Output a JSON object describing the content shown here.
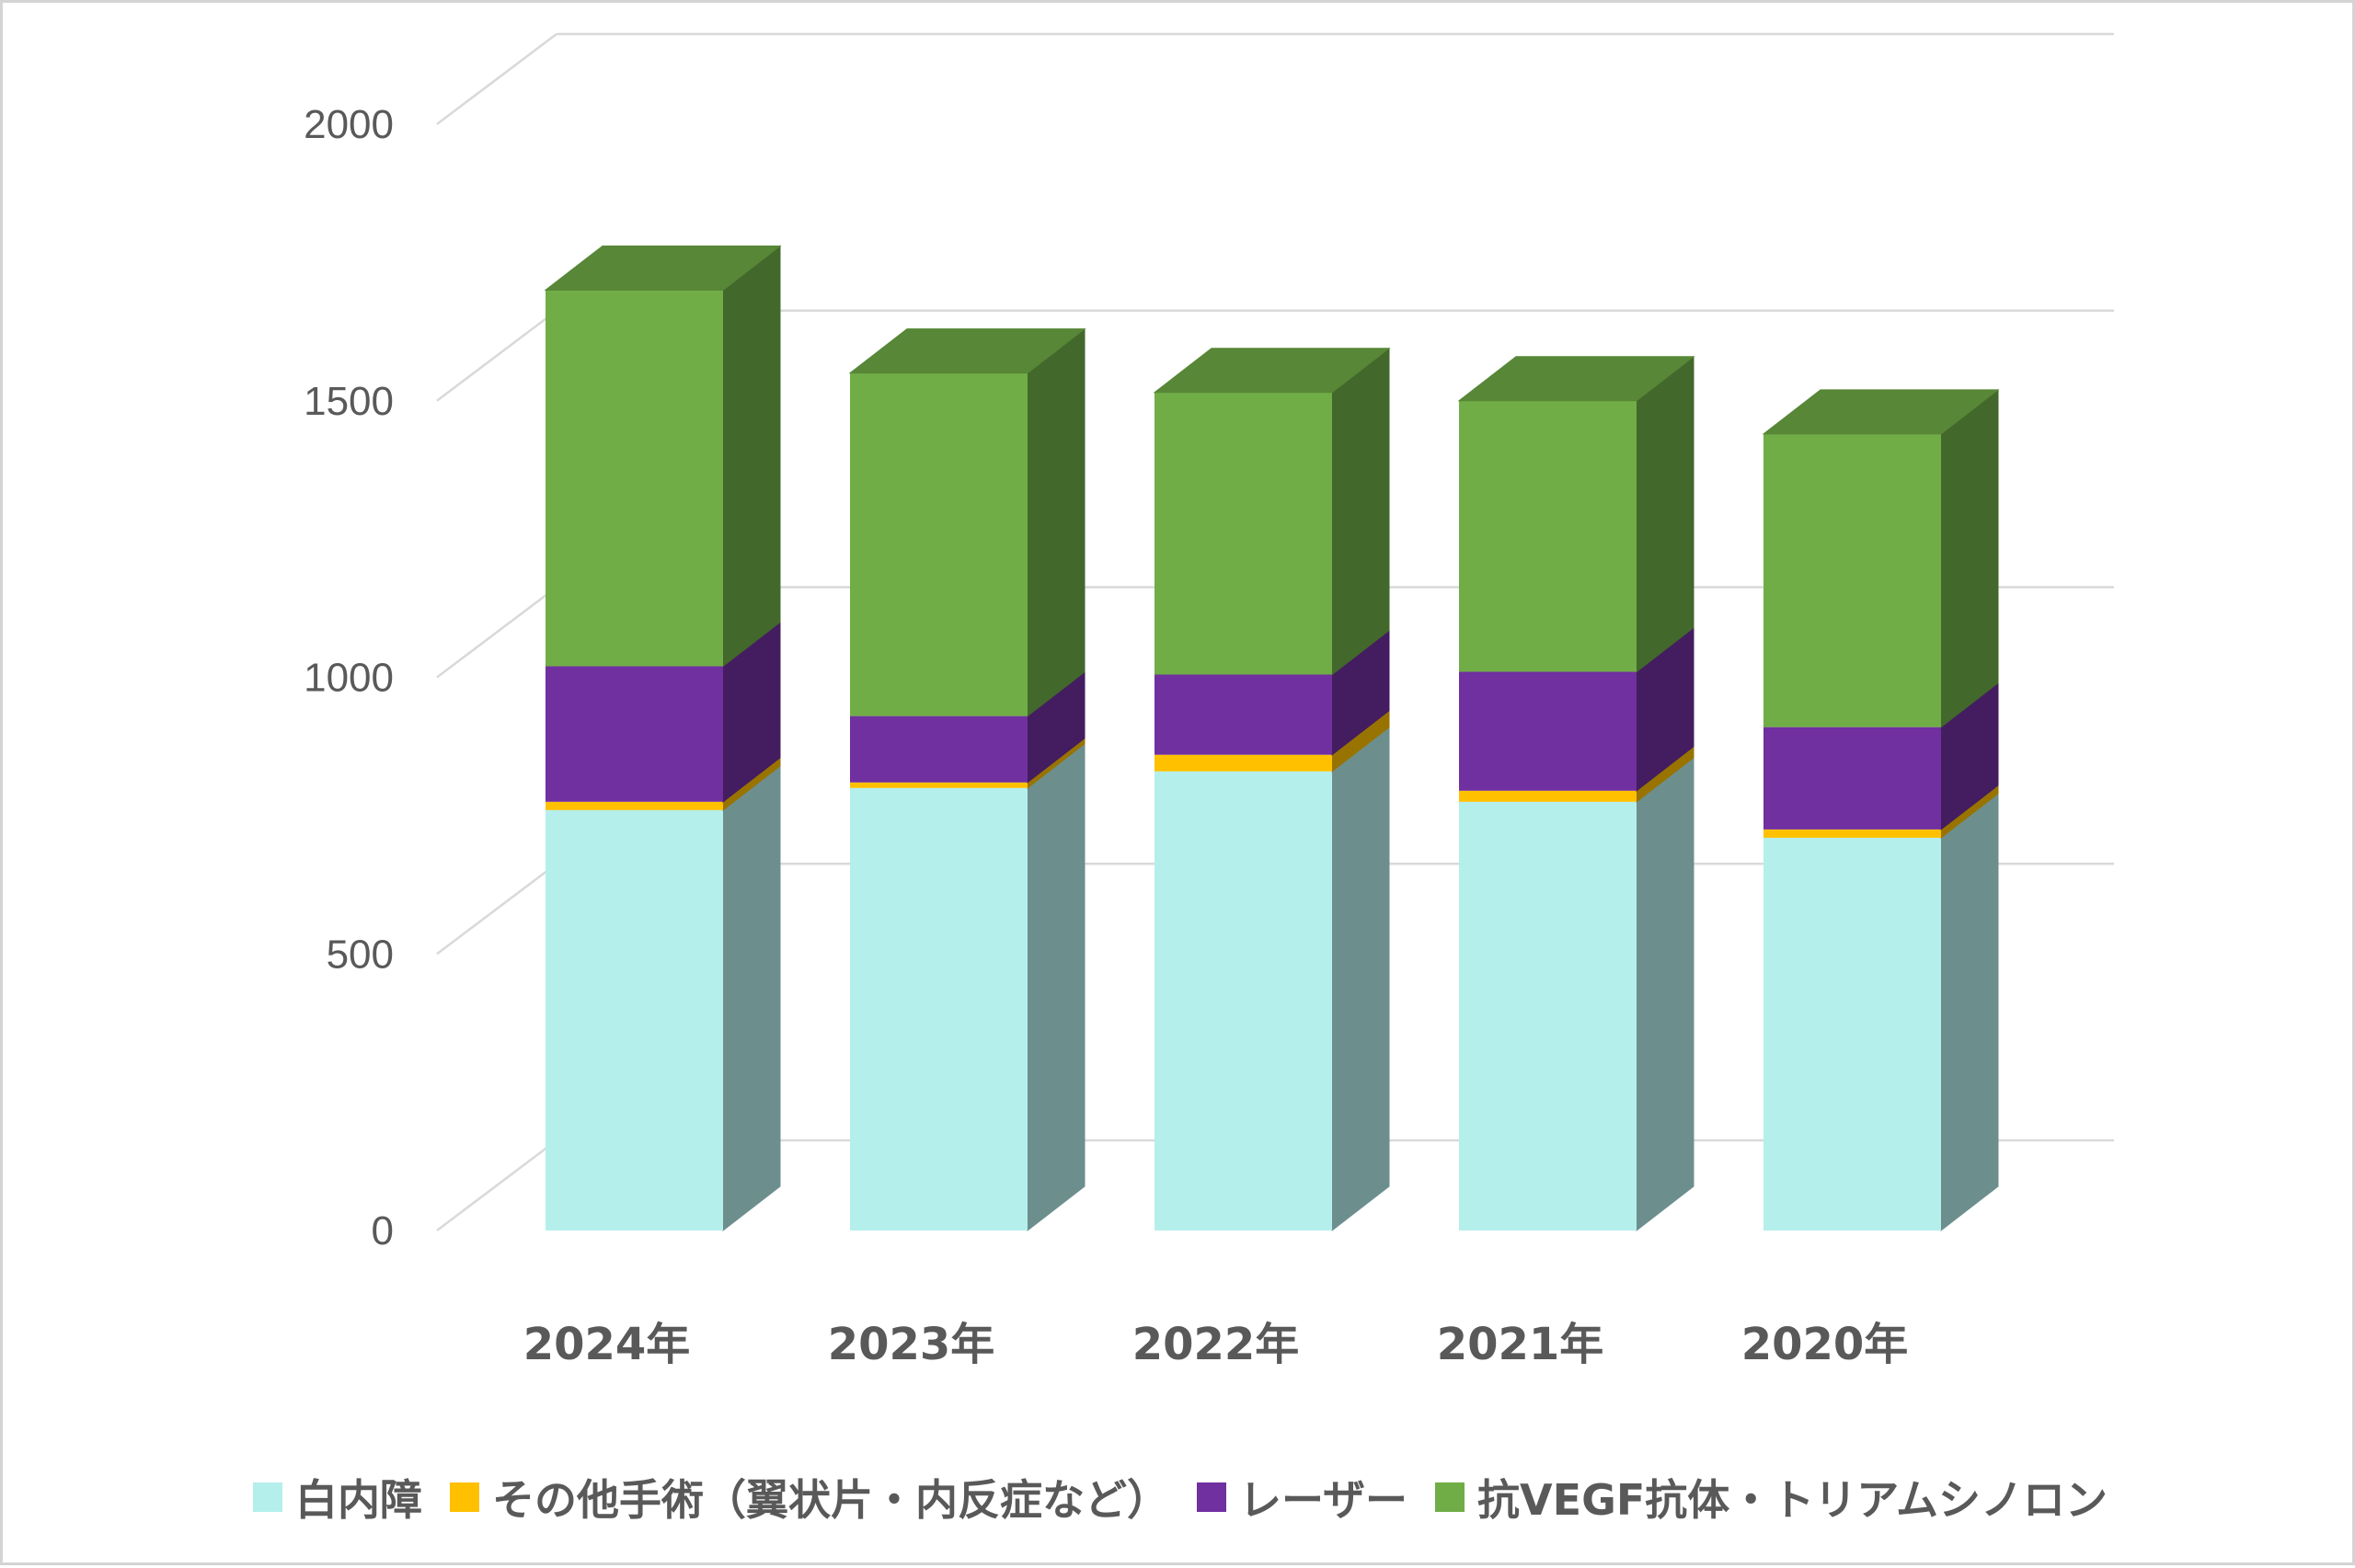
{
  "chart_data": {
    "type": "bar",
    "stacked": true,
    "three_d": true,
    "categories": [
      "2024年",
      "2023年",
      "2022年",
      "2021年",
      "2020年"
    ],
    "series": [
      {
        "name": "白内障",
        "color": "#b4efec",
        "values": [
          760,
          800,
          830,
          775,
          710
        ]
      },
      {
        "name": "その他手術（翼状片・内反症など）",
        "color": "#ffc000",
        "values": [
          15,
          10,
          30,
          20,
          15
        ]
      },
      {
        "name": "レーザー",
        "color": "#7030a0",
        "values": [
          245,
          120,
          145,
          215,
          185
        ]
      },
      {
        "name": "抗VEGF抗体・トリアムシノロン",
        "color": "#70ad47",
        "values": [
          680,
          620,
          510,
          490,
          530
        ]
      }
    ],
    "yticks": [
      "0",
      "500",
      "1000",
      "1500",
      "2000"
    ],
    "ylim": [
      0,
      2000
    ],
    "grid": true,
    "legend_position": "bottom"
  }
}
